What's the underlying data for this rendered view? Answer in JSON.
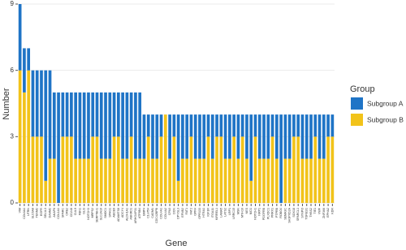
{
  "chart_data": {
    "type": "stacked_bar",
    "y_label": "Number",
    "x_label": "Gene",
    "legend_title": "Group",
    "categories": [
      "VIM",
      "COL6A1",
      "UTRN",
      "SLC6A8",
      "TENM2",
      "EGFR",
      "SEL1L3",
      "DAAM2",
      "AKAP6",
      "COL1A1",
      "SPARC",
      "CRB2",
      "CD248",
      "CUL9",
      "FBN1",
      "GLI3",
      "NOTCH3",
      "MRPS2",
      "SERPINH1",
      "SLC2A10",
      "SMOC1",
      "SPAG1",
      "ABCB9",
      "ADAMTS8",
      "ADCY4",
      "ALDH1A1",
      "ANKRD1",
      "ARHGAP31",
      "ATP8B4",
      "BMP4",
      "C1orf54",
      "CADM1",
      "CDC42BPB",
      "COL4A1",
      "COL4A2",
      "CPA3",
      "DCN",
      "DPYSL3",
      "EFNB2",
      "FAT1",
      "FAT2",
      "GPR4",
      "GPR133",
      "HTRA1",
      "IGF1R",
      "ITGA11",
      "KIRREL1",
      "LAMA5",
      "LATS2",
      "LRP1",
      "LRRC15",
      "MSN",
      "MYH10",
      "NES",
      "NID1",
      "NOTCH1",
      "NRP1",
      "PDGFRB",
      "PLXDC1",
      "PRRX1",
      "PTPRB",
      "ROBO4",
      "SEMA3C",
      "SH3PXD2A",
      "SOX18",
      "SPARCL1",
      "SYNPO",
      "TGFB1I1",
      "THBS2",
      "TIE1",
      "VWF",
      "ZNF366",
      "EPHA2",
      "KDR"
    ],
    "series": [
      {
        "name": "Subgroup A",
        "color": "#1f74c6",
        "values": [
          3,
          2,
          1,
          3,
          3,
          3,
          5,
          4,
          3,
          5,
          2,
          2,
          2,
          3,
          3,
          3,
          3,
          2,
          2,
          3,
          3,
          3,
          2,
          2,
          3,
          3,
          2,
          3,
          3,
          2,
          1,
          2,
          2,
          1,
          0,
          2,
          1,
          3,
          2,
          2,
          1,
          2,
          2,
          2,
          1,
          2,
          1,
          1,
          2,
          2,
          1,
          2,
          1,
          2,
          3,
          1,
          2,
          2,
          2,
          1,
          2,
          4,
          2,
          2,
          1,
          1,
          2,
          2,
          2,
          1,
          2,
          2,
          1,
          1
        ]
      },
      {
        "name": "Subgroup B",
        "color": "#f2c31a",
        "values": [
          6,
          5,
          6,
          3,
          3,
          3,
          1,
          2,
          2,
          0,
          3,
          3,
          3,
          2,
          2,
          2,
          2,
          3,
          3,
          2,
          2,
          2,
          3,
          3,
          2,
          2,
          3,
          2,
          2,
          2,
          3,
          2,
          2,
          3,
          4,
          2,
          3,
          1,
          2,
          2,
          3,
          2,
          2,
          2,
          3,
          2,
          3,
          3,
          2,
          2,
          3,
          2,
          3,
          2,
          1,
          3,
          2,
          2,
          2,
          3,
          2,
          0,
          2,
          2,
          3,
          3,
          2,
          2,
          2,
          3,
          2,
          2,
          3,
          3
        ]
      }
    ],
    "ylim": [
      0,
      9
    ],
    "yticks": [
      0,
      3,
      6,
      9
    ],
    "grid": true
  }
}
